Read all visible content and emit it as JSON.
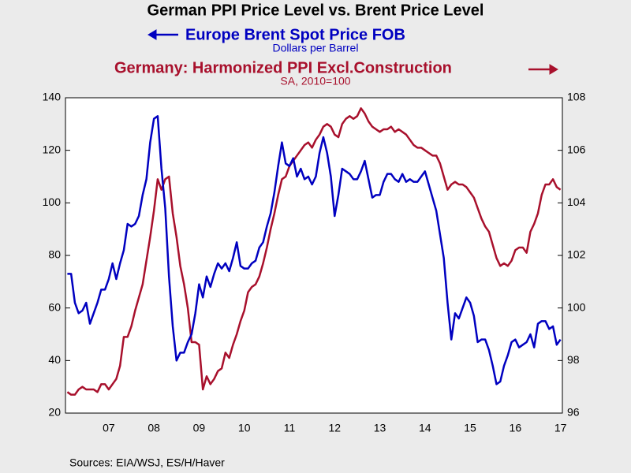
{
  "chart_data": {
    "type": "line",
    "title": "German PPI Price Level vs. Brent Price Level",
    "y_label": "Dollars per Barrel",
    "y2_label": "SA, 2010=100",
    "source": "Sources:  EIA/WSJ, ES/H/Haver",
    "categories": [
      null,
      null,
      null,
      null,
      null,
      null,
      null,
      null,
      null,
      null,
      null,
      "07",
      null,
      null,
      null,
      null,
      null,
      null,
      null,
      null,
      null,
      null,
      null,
      "08",
      null,
      null,
      null,
      null,
      null,
      null,
      null,
      null,
      null,
      null,
      null,
      "09",
      null,
      null,
      null,
      null,
      null,
      null,
      null,
      null,
      null,
      null,
      null,
      "10",
      null,
      null,
      null,
      null,
      null,
      null,
      null,
      null,
      null,
      null,
      null,
      "11",
      null,
      null,
      null,
      null,
      null,
      null,
      null,
      null,
      null,
      null,
      null,
      "12",
      null,
      null,
      null,
      null,
      null,
      null,
      null,
      null,
      null,
      null,
      null,
      "13",
      null,
      null,
      null,
      null,
      null,
      null,
      null,
      null,
      null,
      null,
      null,
      "14",
      null,
      null,
      null,
      null,
      null,
      null,
      null,
      null,
      null,
      null,
      null,
      "15",
      null,
      null,
      null,
      null,
      null,
      null,
      null,
      null,
      null,
      null,
      null,
      "16",
      null,
      null,
      null,
      null,
      null,
      null,
      null,
      null,
      null,
      null,
      null,
      "17"
    ],
    "series": [
      {
        "name": "Europe Brent Spot Price FOB",
        "color": "#0000c0",
        "axis": "y",
        "values": [
          73,
          73,
          62,
          58,
          59,
          62,
          54,
          58,
          62,
          67,
          67,
          71,
          77,
          71,
          77,
          82,
          92,
          91,
          92,
          95,
          103,
          109,
          123,
          132,
          133,
          113,
          98,
          72,
          53,
          40,
          43,
          43,
          47,
          50,
          58,
          69,
          64,
          72,
          68,
          73,
          77,
          75,
          77,
          74,
          79,
          85,
          76,
          75,
          75,
          77,
          78,
          83,
          85,
          91,
          96,
          104,
          114,
          123,
          115,
          114,
          117,
          110,
          113,
          109,
          110,
          107,
          110,
          119,
          125,
          119,
          110,
          95,
          103,
          113,
          112,
          111,
          109,
          109,
          112,
          116,
          109,
          102,
          103,
          103,
          108,
          111,
          111,
          109,
          108,
          111,
          108,
          109,
          108,
          108,
          110,
          112,
          107,
          102,
          97,
          88,
          79,
          62,
          48,
          58,
          56,
          60,
          64,
          62,
          57,
          47,
          48,
          48,
          44,
          38,
          31,
          32,
          38,
          42,
          47,
          48,
          45,
          46,
          47,
          50,
          45,
          54,
          55,
          55,
          52,
          53,
          46,
          48
        ]
      },
      {
        "name": "Germany: Harmonized PPI Excl.Construction",
        "color": "#a8102c",
        "axis": "y2",
        "values": [
          96.8,
          96.7,
          96.7,
          96.9,
          97.0,
          96.9,
          96.9,
          96.9,
          96.8,
          97.1,
          97.1,
          96.9,
          97.1,
          97.3,
          97.8,
          98.9,
          98.9,
          99.3,
          99.9,
          100.4,
          100.9,
          101.8,
          102.7,
          103.7,
          104.9,
          104.5,
          104.9,
          105.0,
          103.6,
          102.7,
          101.6,
          100.9,
          100.0,
          98.7,
          98.7,
          98.6,
          96.9,
          97.4,
          97.1,
          97.3,
          97.6,
          97.7,
          98.3,
          98.1,
          98.6,
          99.0,
          99.5,
          99.9,
          100.6,
          100.8,
          100.9,
          101.2,
          101.7,
          102.3,
          103.0,
          103.6,
          104.3,
          104.9,
          105.0,
          105.4,
          105.6,
          105.8,
          106.0,
          106.2,
          106.3,
          106.1,
          106.4,
          106.6,
          106.9,
          107.0,
          106.9,
          106.6,
          106.5,
          107.0,
          107.2,
          107.3,
          107.2,
          107.3,
          107.6,
          107.4,
          107.1,
          106.9,
          106.8,
          106.7,
          106.8,
          106.8,
          106.9,
          106.7,
          106.8,
          106.7,
          106.6,
          106.4,
          106.2,
          106.1,
          106.1,
          106.0,
          105.9,
          105.8,
          105.8,
          105.5,
          105.0,
          104.5,
          104.7,
          104.8,
          104.7,
          104.7,
          104.6,
          104.4,
          104.2,
          103.8,
          103.4,
          103.1,
          102.9,
          102.4,
          101.9,
          101.6,
          101.7,
          101.6,
          101.8,
          102.2,
          102.3,
          102.3,
          102.1,
          102.9,
          103.2,
          103.6,
          104.3,
          104.7,
          104.7,
          104.9,
          104.6,
          104.5
        ]
      }
    ],
    "ylim": [
      20,
      140
    ],
    "yticks": [
      20,
      40,
      60,
      80,
      100,
      120,
      140
    ],
    "y2lim": [
      96,
      108
    ],
    "y2ticks": [
      96,
      98,
      100,
      102,
      104,
      106,
      108
    ]
  }
}
